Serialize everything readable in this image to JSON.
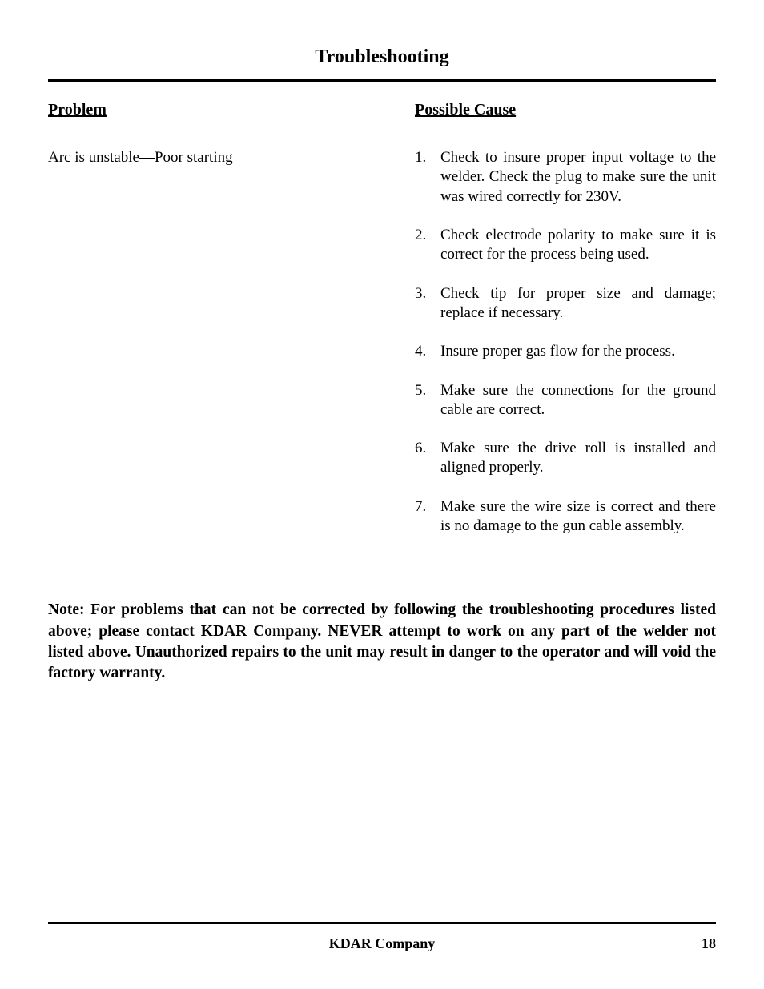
{
  "title": "Troubleshooting",
  "left": {
    "heading": "Problem",
    "text": "Arc is unstable—Poor starting"
  },
  "right": {
    "heading": "Possible Cause",
    "items": [
      "Check to insure proper input voltage to the welder.  Check the plug to make sure the unit was wired correctly for 230V.",
      "Check electrode polarity to make sure it is correct for the process being used.",
      "Check tip for proper size and damage; replace if necessary.",
      "Insure proper gas flow for the process.",
      "Make sure the connections for the ground cable are correct.",
      "Make sure the drive roll is installed and aligned properly.",
      "Make sure the wire size is correct and there is no damage to the gun cable assembly."
    ]
  },
  "note": "Note: For problems that can not be corrected by following the troubleshooting procedures listed above; please contact KDAR Company. NEVER attempt to work on any part of the welder not listed above. Unauthorized repairs to the unit may result in danger to the operator and will void the factory warranty.",
  "footer": {
    "company": "KDAR Company",
    "page": "18"
  },
  "colors": {
    "text": "#000000",
    "background": "#ffffff",
    "rule": "#000000"
  },
  "typography": {
    "family": "Times New Roman",
    "title_size_pt": 18,
    "heading_size_pt": 15,
    "body_size_pt": 14,
    "footer_size_pt": 13
  }
}
